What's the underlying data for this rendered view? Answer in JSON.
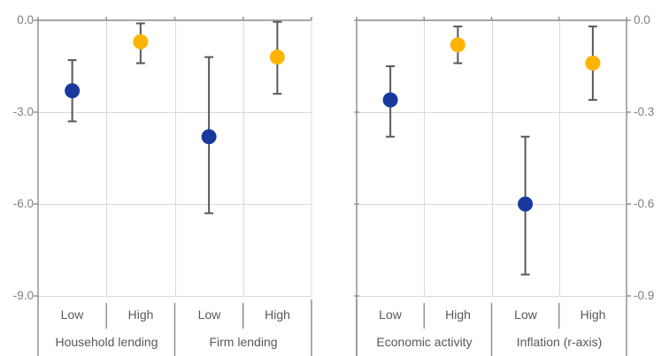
{
  "figure": {
    "background": "#FFFFFF",
    "description": "Two-panel dot plot with confidence-interval whiskers"
  },
  "chart_data": {
    "type": "scatter",
    "subtype": "point-estimates-with-error-bars",
    "grid": true,
    "colors": {
      "low_series": "#17399E",
      "high_series": "#FFB400",
      "error_bar": "#595959",
      "gridline": "#D9D9D9",
      "axis_line": "#8A8A8A",
      "axis_text": "#7F7F7F",
      "category_text": "#595959"
    },
    "axis_note": "Left value axis 0.0 to -9.0 applies to all groups except Inflation, which reads on the right axis 0.0 to -0.9",
    "panels": [
      {
        "axis": {
          "position": "left",
          "min": -9,
          "max": 0,
          "ticks": [
            "0.0",
            "-3.0",
            "-6.0",
            "-9.0"
          ],
          "tick_values": [
            0,
            -3,
            -6,
            -9
          ]
        },
        "groups": [
          {
            "label": "Household lending",
            "axis_scale": "left",
            "points": [
              {
                "level": "Low",
                "series": "low",
                "value": -2.3,
                "ci_high": -1.3,
                "ci_low": -3.3
              },
              {
                "level": "High",
                "series": "high",
                "value": -0.7,
                "ci_high": -0.1,
                "ci_low": -1.4
              }
            ]
          },
          {
            "label": "Firm lending",
            "axis_scale": "left",
            "points": [
              {
                "level": "Low",
                "series": "low",
                "value": -3.8,
                "ci_high": -1.2,
                "ci_low": -6.3
              },
              {
                "level": "High",
                "series": "high",
                "value": -1.2,
                "ci_high": -0.05,
                "ci_low": -2.4
              }
            ]
          }
        ]
      },
      {
        "axis": {
          "position": "right",
          "min": -0.9,
          "max": 0,
          "ticks": [
            "0.0",
            "-0.3",
            "-0.6",
            "-0.9"
          ],
          "tick_values": [
            0,
            -0.3,
            -0.6,
            -0.9
          ]
        },
        "groups": [
          {
            "label": "Economic activity",
            "axis_scale": "left",
            "points": [
              {
                "level": "Low",
                "series": "low",
                "value": -2.6,
                "ci_high": -1.5,
                "ci_low": -3.8
              },
              {
                "level": "High",
                "series": "high",
                "value": -0.8,
                "ci_high": -0.2,
                "ci_low": -1.4
              }
            ]
          },
          {
            "label": "Inflation (r-axis)",
            "axis_scale": "right",
            "points": [
              {
                "level": "Low",
                "series": "low",
                "value": -0.6,
                "ci_high": -0.38,
                "ci_low": -0.83
              },
              {
                "level": "High",
                "series": "high",
                "value": -0.14,
                "ci_high": -0.02,
                "ci_low": -0.26
              }
            ]
          }
        ]
      }
    ]
  }
}
